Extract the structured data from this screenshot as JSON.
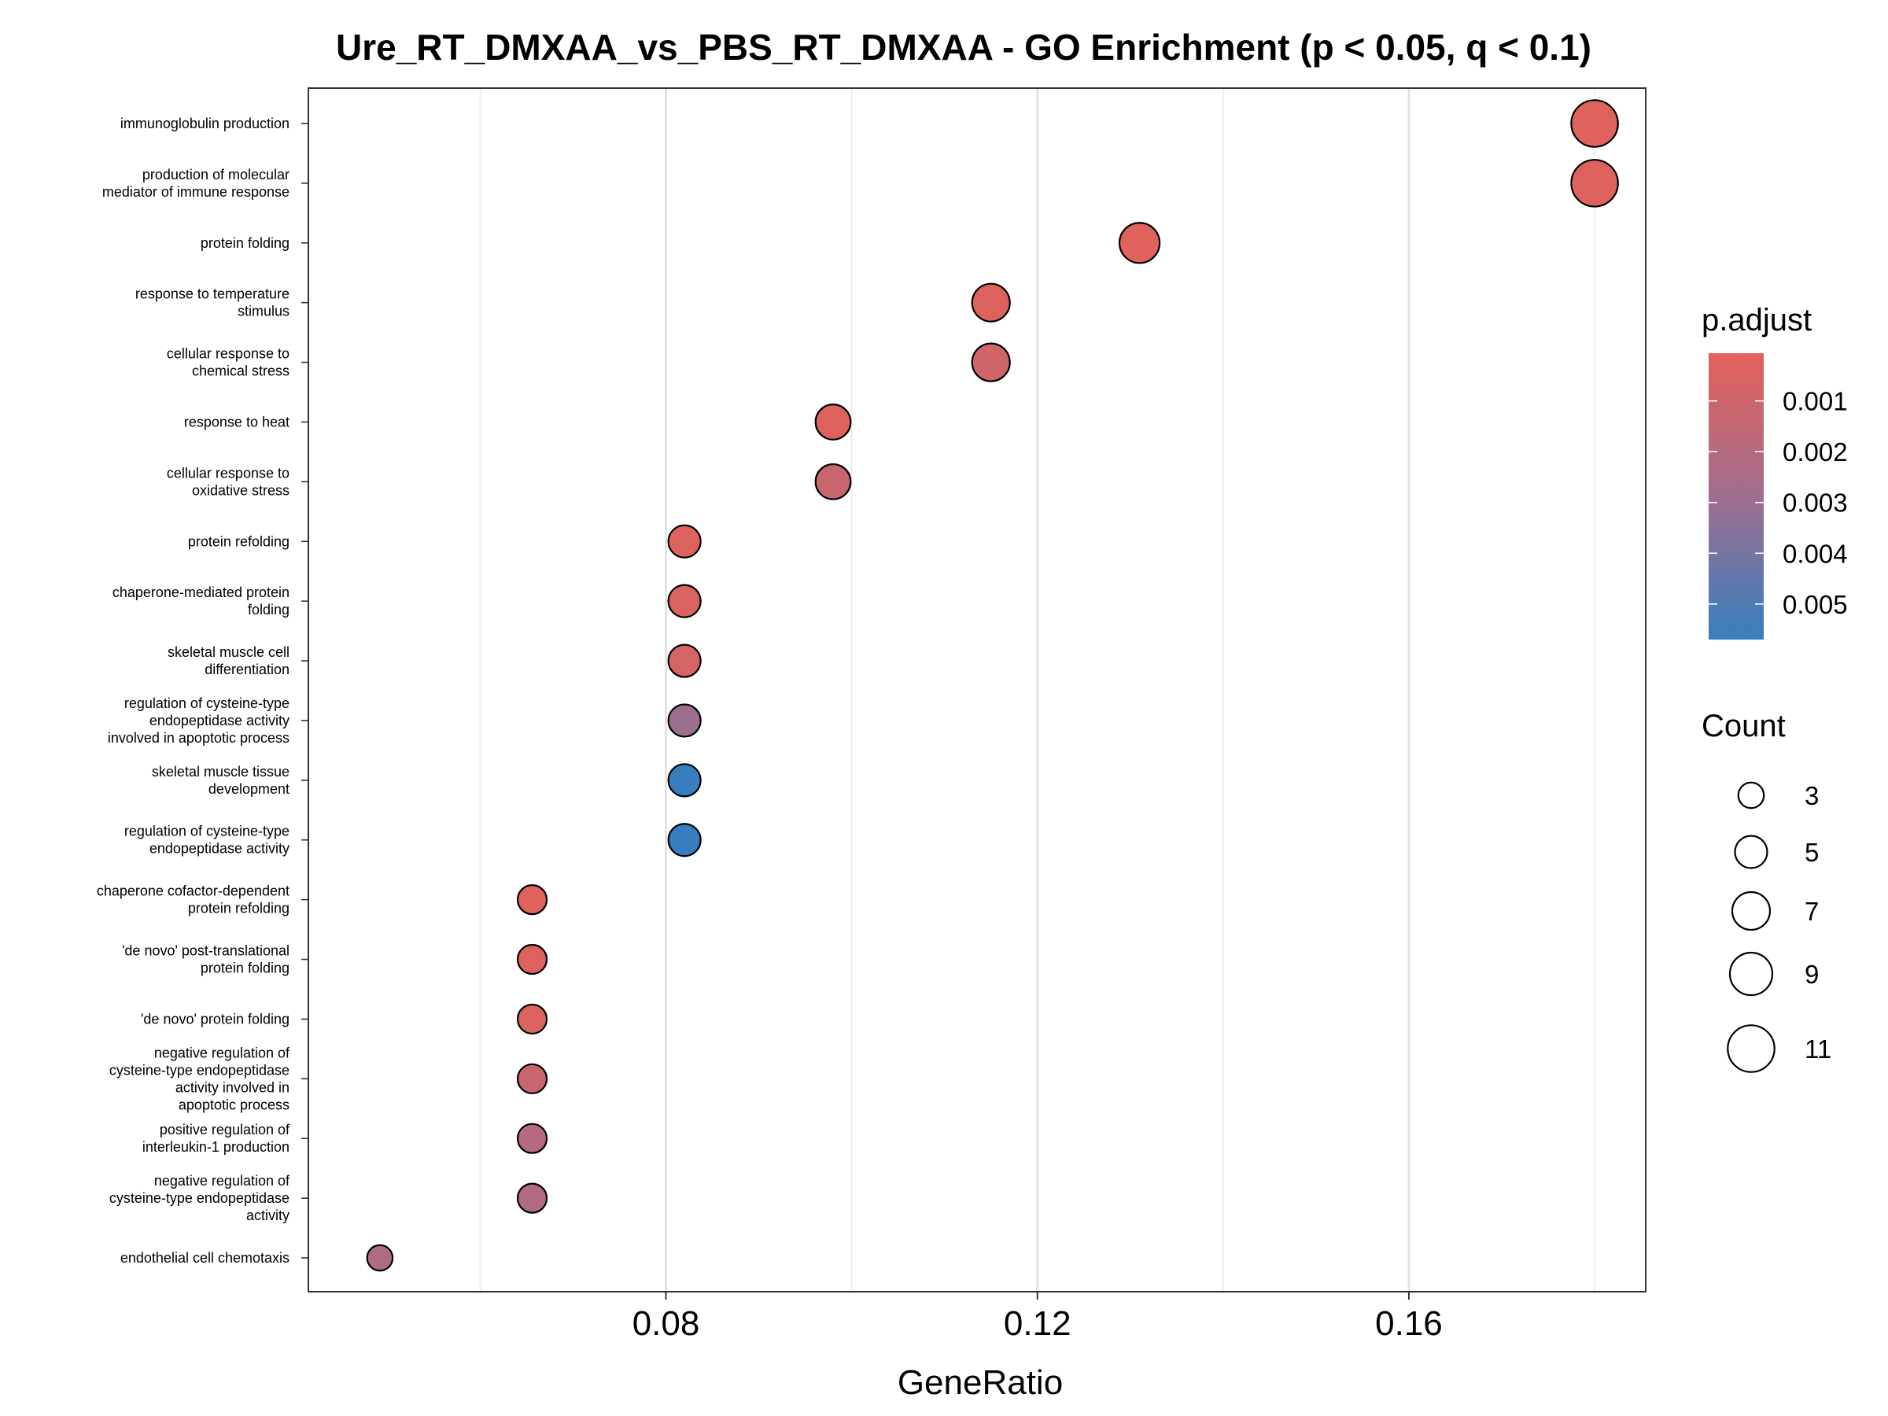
{
  "chart_data": {
    "type": "scatter",
    "title": "Ure_RT_DMXAA_vs_PBS_RT_DMXAA - GO Enrichment (p < 0.05, q < 0.1)",
    "xlabel": "GeneRatio",
    "ylabel": "",
    "xlim": [
      0.0415,
      0.1855
    ],
    "xticks": [
      "0.08",
      "0.12",
      "0.16"
    ],
    "xtick_values": [
      0.08,
      0.12,
      0.16
    ],
    "grid": true,
    "points": [
      {
        "term": "immunoglobulin production",
        "gene_ratio": 0.18,
        "count": 11,
        "p_adjust": 0.0002
      },
      {
        "term": "production of molecular\nmediator of immune response",
        "gene_ratio": 0.18,
        "count": 11,
        "p_adjust": 0.0003
      },
      {
        "term": "protein folding",
        "gene_ratio": 0.131,
        "count": 8,
        "p_adjust": 0.0002
      },
      {
        "term": "response to temperature\nstimulus",
        "gene_ratio": 0.115,
        "count": 7,
        "p_adjust": 0.0003
      },
      {
        "term": "cellular response to\nchemical stress",
        "gene_ratio": 0.115,
        "count": 7,
        "p_adjust": 0.0009
      },
      {
        "term": "response to heat",
        "gene_ratio": 0.098,
        "count": 6,
        "p_adjust": 0.0003
      },
      {
        "term": "cellular response to\noxidative stress",
        "gene_ratio": 0.098,
        "count": 6,
        "p_adjust": 0.0012
      },
      {
        "term": "protein refolding",
        "gene_ratio": 0.082,
        "count": 5,
        "p_adjust": 0.0003
      },
      {
        "term": "chaperone-mediated protein\nfolding",
        "gene_ratio": 0.082,
        "count": 5,
        "p_adjust": 0.0004
      },
      {
        "term": "skeletal muscle cell\ndifferentiation",
        "gene_ratio": 0.082,
        "count": 5,
        "p_adjust": 0.0007
      },
      {
        "term": "regulation of cysteine-type\nendopeptidase activity\ninvolved in apoptotic process",
        "gene_ratio": 0.082,
        "count": 5,
        "p_adjust": 0.003
      },
      {
        "term": "skeletal muscle tissue\ndevelopment",
        "gene_ratio": 0.082,
        "count": 5,
        "p_adjust": 0.0057
      },
      {
        "term": "regulation of cysteine-type\nendopeptidase activity",
        "gene_ratio": 0.082,
        "count": 5,
        "p_adjust": 0.0057
      },
      {
        "term": "chaperone cofactor-dependent\nprotein refolding",
        "gene_ratio": 0.0656,
        "count": 4,
        "p_adjust": 0.0002
      },
      {
        "term": "'de novo' post-translational\nprotein folding",
        "gene_ratio": 0.0656,
        "count": 4,
        "p_adjust": 0.0003
      },
      {
        "term": "'de novo' protein folding",
        "gene_ratio": 0.0656,
        "count": 4,
        "p_adjust": 0.0004
      },
      {
        "term": "negative regulation of\ncysteine-type endopeptidase\nactivity involved in\napoptotic process",
        "gene_ratio": 0.0656,
        "count": 4,
        "p_adjust": 0.0012
      },
      {
        "term": "positive regulation of\ninterleukin-1 production",
        "gene_ratio": 0.0656,
        "count": 4,
        "p_adjust": 0.002
      },
      {
        "term": "negative regulation of\ncysteine-type endopeptidase\nactivity",
        "gene_ratio": 0.0656,
        "count": 4,
        "p_adjust": 0.0022
      },
      {
        "term": "endothelial cell chemotaxis",
        "gene_ratio": 0.0492,
        "count": 3,
        "p_adjust": 0.0023
      }
    ],
    "color_legend": {
      "title": "p.adjust",
      "ticks": [
        "0.001",
        "0.002",
        "0.003",
        "0.004",
        "0.005"
      ],
      "tick_values": [
        0.001,
        0.002,
        0.003,
        0.004,
        0.005
      ],
      "range": [
        6e-05,
        0.0057
      ],
      "low_color": "#E36159",
      "mid_color": "#A06E8E",
      "high_color": "#377EBF"
    },
    "size_legend": {
      "title": "Count",
      "values": [
        3,
        5,
        7,
        9,
        11
      ],
      "labels": [
        "3",
        "5",
        "7",
        "9",
        "11"
      ]
    }
  }
}
